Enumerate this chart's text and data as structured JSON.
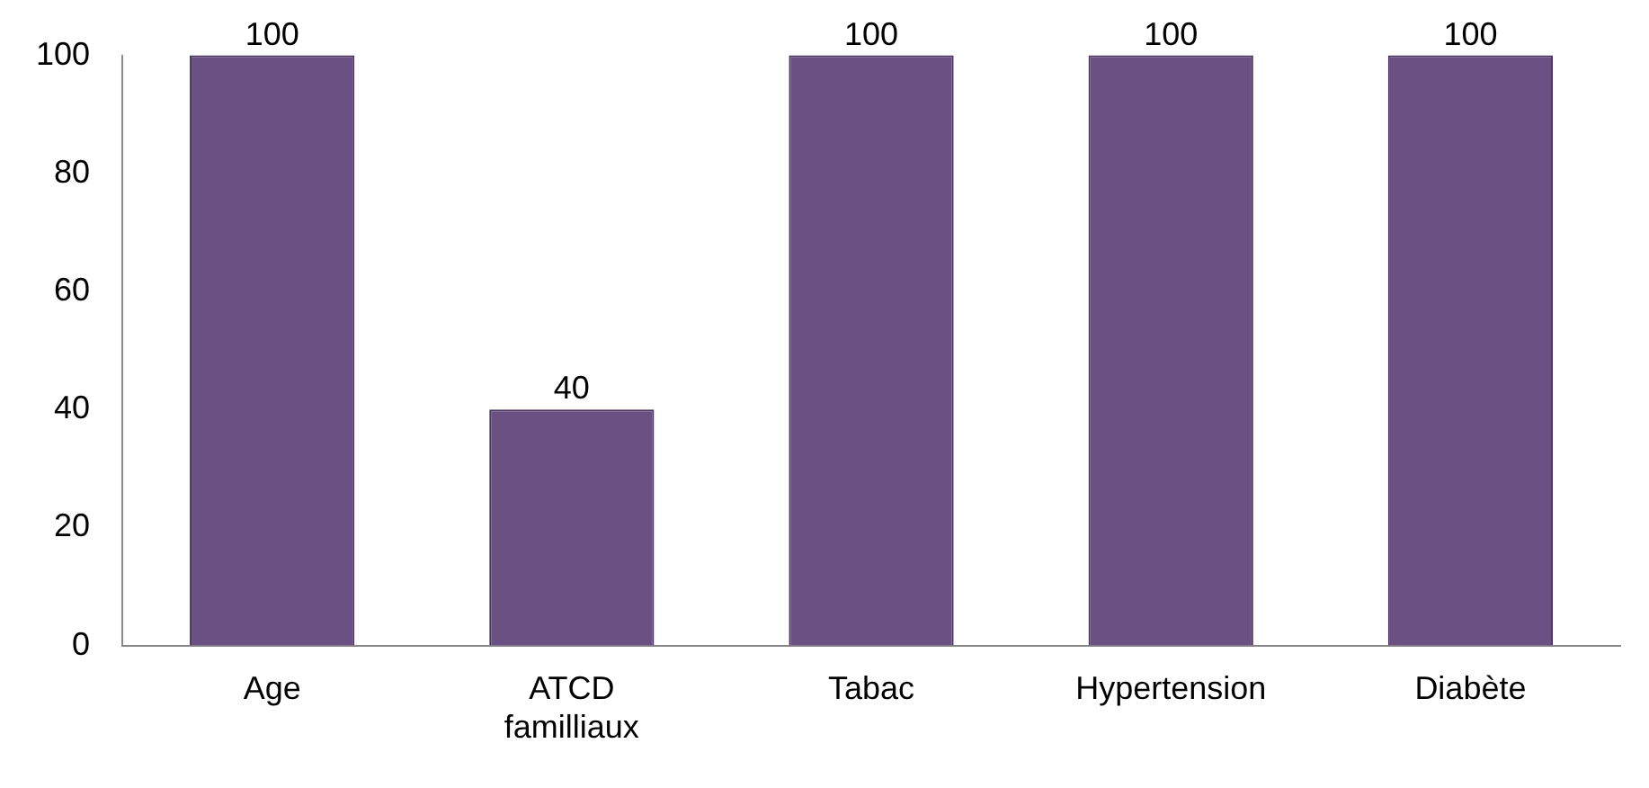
{
  "chart_data": {
    "type": "bar",
    "categories": [
      "Age",
      "ATCD familliaux",
      "Tabac",
      "Hypertension",
      "Diabète"
    ],
    "values": [
      100,
      40,
      100,
      100,
      100
    ],
    "color": "#6a5083",
    "ylim": [
      0,
      100
    ],
    "yticks": [
      0,
      20,
      40,
      60,
      80,
      100
    ],
    "grid": false,
    "legend": false,
    "data_labels": true
  }
}
